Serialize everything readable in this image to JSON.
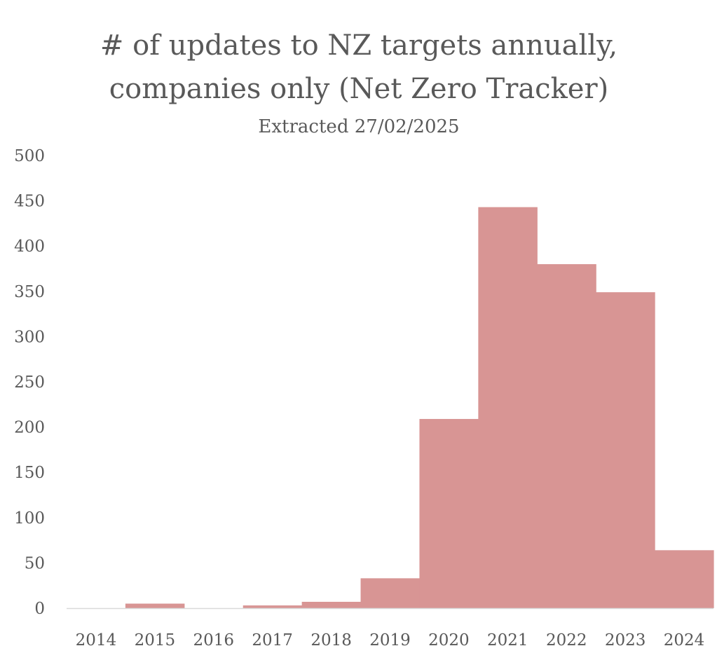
{
  "chart_data": {
    "type": "bar",
    "title_lines": [
      "# of updates to NZ targets annually,",
      "companies only (Net Zero Tracker)"
    ],
    "subtitle": "Extracted 27/02/2025",
    "xlabel": "",
    "ylabel": "",
    "categories": [
      "2014",
      "2015",
      "2016",
      "2017",
      "2018",
      "2019",
      "2020",
      "2021",
      "2022",
      "2023",
      "2024"
    ],
    "values": [
      0,
      5,
      0,
      3,
      7,
      33,
      209,
      443,
      380,
      349,
      64
    ],
    "ylim": [
      0,
      500
    ],
    "yticks": [
      "0",
      "50",
      "100",
      "150",
      "200",
      "250",
      "300",
      "350",
      "400",
      "450",
      "500"
    ],
    "grid": false,
    "legend": "none",
    "colors": {
      "bar": "#D89594",
      "axis_line": "#D9D9D9",
      "text": "#595959"
    }
  }
}
